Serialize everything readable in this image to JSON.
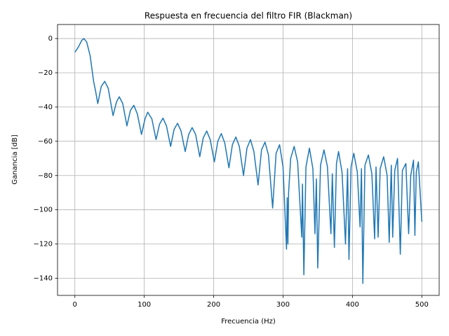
{
  "chart_data": {
    "type": "line",
    "title": "Respuesta en frecuencia del filtro FIR (Blackman)",
    "xlabel": "Frecuencia (Hz)",
    "ylabel": "Ganancia [dB]",
    "color": "#1f77b4",
    "grid": true,
    "xlim": [
      -25,
      525
    ],
    "ylim": [
      -150,
      8.2
    ],
    "xticks": [
      0,
      100,
      200,
      300,
      400,
      500
    ],
    "yticks": [
      {
        "value": 0,
        "label": "0"
      },
      {
        "value": -20,
        "label": "−20"
      },
      {
        "value": -40,
        "label": "−40"
      },
      {
        "value": -60,
        "label": "−60"
      },
      {
        "value": -80,
        "label": "−80"
      },
      {
        "value": -100,
        "label": "−100"
      },
      {
        "value": -120,
        "label": "−120"
      },
      {
        "value": -140,
        "label": "−140"
      }
    ],
    "x": [
      0,
      5,
      10,
      13,
      17,
      22,
      27,
      30,
      33,
      38,
      43,
      48,
      55,
      60,
      64,
      69,
      75,
      80,
      85,
      90,
      96,
      101,
      105,
      111,
      117,
      122,
      127,
      132,
      138,
      143,
      148,
      153,
      159,
      164,
      169,
      174,
      180,
      185,
      190,
      195,
      201,
      206,
      211,
      216,
      222,
      227,
      232,
      237,
      243,
      248,
      253,
      258,
      264,
      269,
      274,
      279,
      285,
      290,
      295,
      300,
      305,
      306,
      307,
      308,
      311,
      316,
      321,
      327,
      328,
      330,
      333,
      338,
      343,
      346,
      348,
      350,
      354,
      359,
      364,
      369,
      371,
      374,
      377,
      380,
      385,
      390,
      393,
      395,
      398,
      402,
      407,
      411,
      413,
      415,
      418,
      423,
      428,
      432,
      434,
      437,
      440,
      445,
      450,
      453,
      456,
      458,
      461,
      465,
      469,
      472,
      477,
      481,
      484,
      488,
      490,
      492,
      495,
      500
    ],
    "values": [
      -8,
      -5,
      -1,
      0,
      -2,
      -10,
      -25,
      -31,
      -38,
      -28,
      -25,
      -29,
      -45,
      -37,
      -34,
      -38,
      -51,
      -42,
      -39,
      -44,
      -56,
      -47,
      -43,
      -47,
      -59,
      -50,
      -46.5,
      -51,
      -63,
      -53,
      -49.5,
      -54,
      -66,
      -56,
      -52,
      -56,
      -69,
      -58,
      -54,
      -59,
      -72,
      -60,
      -55.5,
      -61,
      -75.5,
      -62,
      -57.5,
      -63,
      -80,
      -64,
      -59,
      -66,
      -85.5,
      -65,
      -60.5,
      -68,
      -99,
      -67,
      -62,
      -75,
      -123,
      -93,
      -120,
      -90,
      -70,
      -63,
      -72,
      -116,
      -85,
      -138,
      -75,
      -64,
      -76,
      -114,
      -82,
      -134,
      -74,
      -65,
      -75,
      -114,
      -79,
      -122,
      -73,
      -66,
      -78,
      -120,
      -76,
      -129,
      -75,
      -67,
      -78,
      -110,
      -76,
      -143,
      -74,
      -68,
      -79,
      -117,
      -75,
      -116,
      -76,
      -69,
      -80,
      -119,
      -74,
      -116,
      -77,
      -70,
      -126,
      -77,
      -73,
      -114,
      -80,
      -71,
      -115,
      -78,
      -72,
      -107
    ]
  }
}
